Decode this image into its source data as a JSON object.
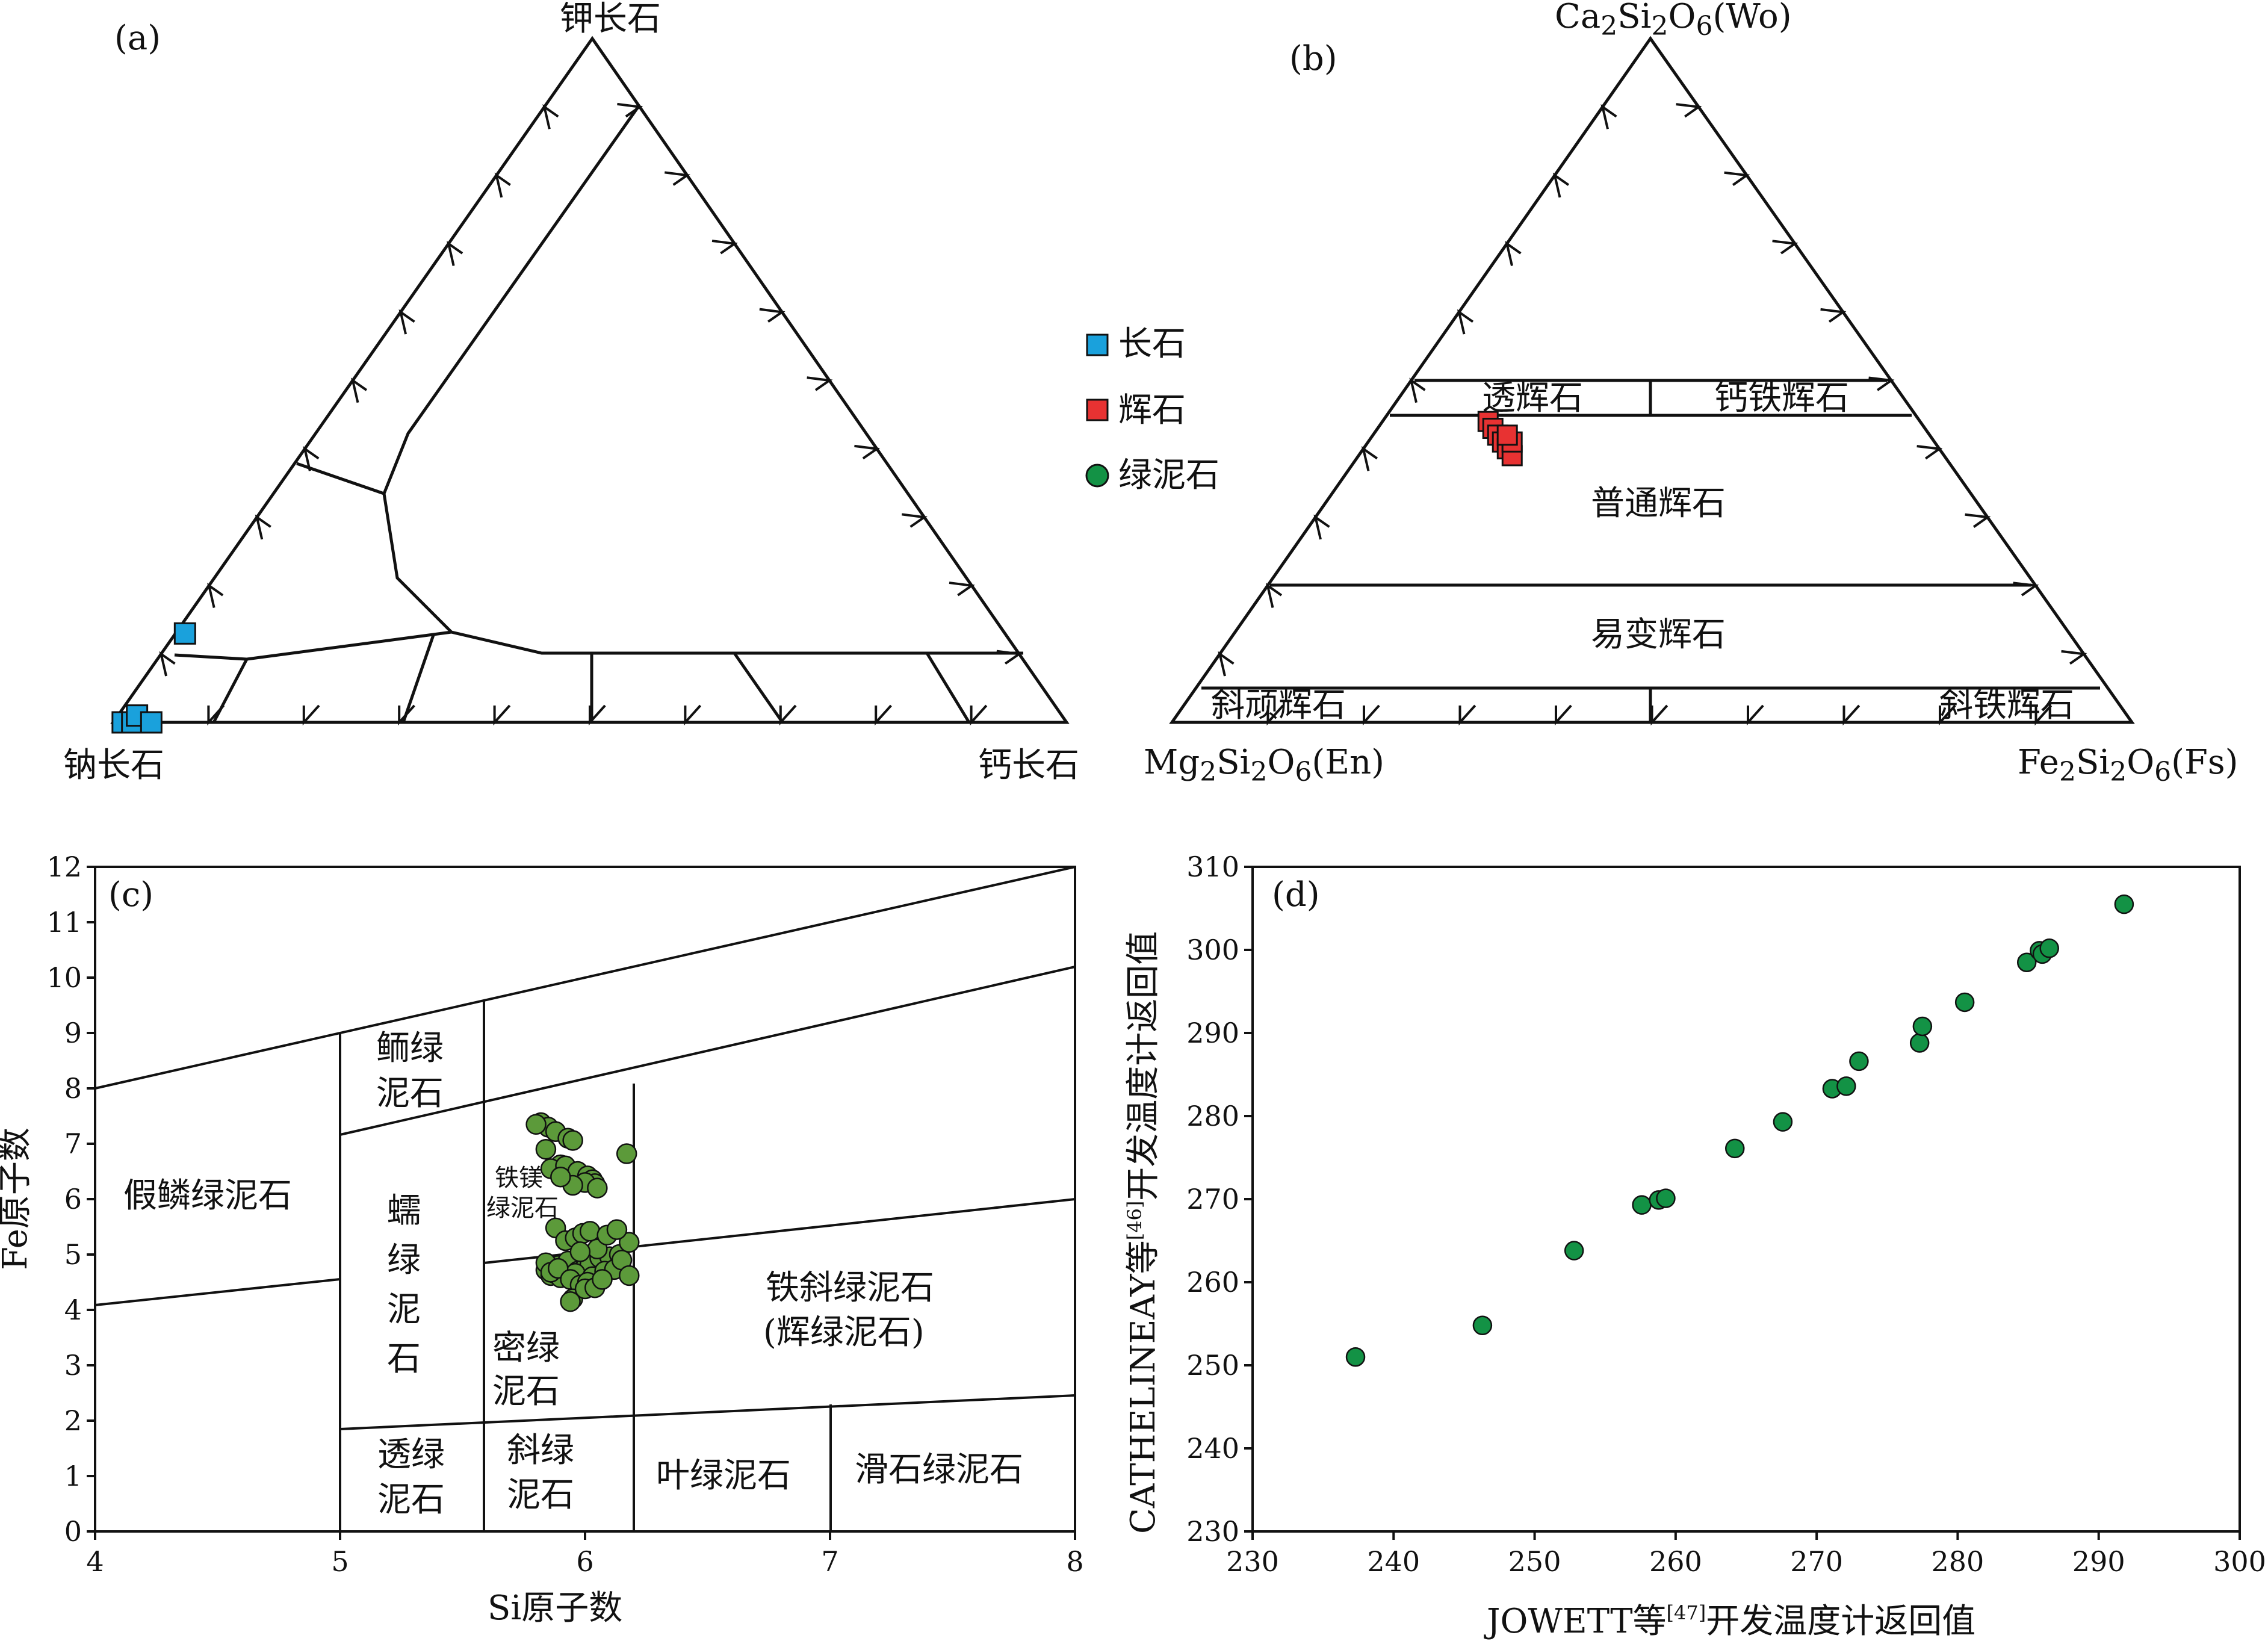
{
  "colors": {
    "feldspar": "#1aa1dc",
    "pyroxene": "#e83232",
    "chlorite_c": "#5c9a3a",
    "chlorite_legend": "#139245",
    "chlorite_d": "#139245",
    "line": "#111111"
  },
  "legend": [
    {
      "key": "feldspar",
      "shape": "square",
      "label": "长石"
    },
    {
      "key": "pyroxene",
      "shape": "square",
      "label": "辉石"
    },
    {
      "key": "chlorite",
      "shape": "circle",
      "label": "绿泥石"
    }
  ],
  "panels": {
    "a": {
      "letter": "(a)",
      "top": "钾长石",
      "left": "钠长石",
      "right": "钙长石"
    },
    "b": {
      "letter": "(b)",
      "top": {
        "main": "Ca",
        "s1": "2",
        "mid": "Si",
        "s2": "2",
        "mid2": "O",
        "s3": "6",
        "tail": "(Wo)"
      },
      "left": {
        "main": "Mg",
        "s1": "2",
        "mid": "Si",
        "s2": "2",
        "mid2": "O",
        "s3": "6",
        "tail": "(En)"
      },
      "right": {
        "main": "Fe",
        "s1": "2",
        "mid": "Si",
        "s2": "2",
        "mid2": "O",
        "s3": "6",
        "tail": "(Fs)"
      },
      "fields": [
        "透辉石",
        "钙铁辉石",
        "普通辉石",
        "易变辉石",
        "斜顽辉石",
        "斜铁辉石"
      ]
    },
    "c": {
      "letter": "(c)",
      "xlabel": "Si原子数",
      "ylabel": "Fe原子数",
      "fields": {
        "pseudothuringite": "假鳞绿泥石",
        "brunsvigite_1": "鲕绿",
        "brunsvigite_2": "泥石",
        "ripidolite": [
          "蠕",
          "绿",
          "泥",
          "石"
        ],
        "ferromg_1": "铁镁",
        "ferromg_2": "绿泥石",
        "pycnochlorite_1": "密绿",
        "pycnochlorite_2": "泥石",
        "ferriclino_1": "铁斜绿泥石",
        "ferriclino_2": "(辉绿泥石)",
        "penninite_1": "透绿",
        "penninite_2": "泥石",
        "clinochlore_1": "斜绿",
        "clinochlore_2": "泥石",
        "sheridanite": "叶绿泥石",
        "talc_chlorite": "滑石绿泥石"
      }
    },
    "d": {
      "letter": "(d)",
      "xlabel": {
        "pre": "JOWETT等",
        "ref": "[47]",
        "post": "开发温度计返回值"
      },
      "ylabel": {
        "pre": "CATHELINEAY等",
        "ref": "[46]",
        "post": "开发温度计返回值"
      }
    }
  },
  "chart_data": [
    {
      "panel": "a",
      "type": "ternary",
      "vertices": {
        "top": "钾长石",
        "left": "钠长石",
        "right": "钙长石"
      },
      "series": [
        {
          "name": "长石",
          "points": [
            [
              0.0,
              0.99,
              0.01
            ],
            [
              0.0,
              0.98,
              0.02
            ],
            [
              0.01,
              0.97,
              0.02
            ],
            [
              0.0,
              0.96,
              0.04
            ],
            [
              0.13,
              0.86,
              0.01
            ]
          ]
        }
      ]
    },
    {
      "panel": "b",
      "type": "ternary",
      "vertices": {
        "top": "Wo",
        "left": "En",
        "right": "Fs"
      },
      "series": [
        {
          "name": "辉石",
          "points": [
            [
              0.44,
              0.45,
              0.11
            ],
            [
              0.43,
              0.45,
              0.12
            ],
            [
              0.42,
              0.45,
              0.13
            ],
            [
              0.41,
              0.45,
              0.14
            ],
            [
              0.4,
              0.45,
              0.15
            ],
            [
              0.39,
              0.45,
              0.16
            ],
            [
              0.41,
              0.44,
              0.15
            ],
            [
              0.42,
              0.44,
              0.14
            ]
          ]
        }
      ]
    },
    {
      "panel": "c",
      "type": "scatter",
      "xlim": [
        4,
        8
      ],
      "ylim": [
        0,
        12
      ],
      "xticks": [
        4,
        5,
        6,
        7,
        8
      ],
      "yticks": [
        0,
        1,
        2,
        3,
        4,
        5,
        6,
        7,
        8,
        9,
        10,
        11,
        12
      ],
      "series": [
        {
          "name": "绿泥石",
          "x": [
            5.82,
            5.85,
            5.88,
            5.93,
            5.95,
            5.8,
            5.84,
            5.9,
            5.86,
            5.92,
            5.97,
            6.01,
            6.03,
            6.04,
            6.0,
            5.95,
            5.9,
            6.05,
            6.17,
            5.88,
            5.84,
            5.89,
            5.93,
            5.97,
            6.0,
            6.02,
            6.06,
            6.1,
            6.14,
            5.86,
            5.88,
            5.9,
            5.96,
            6.03,
            6.08,
            6.12,
            6.15,
            6.18,
            6.18,
            5.92,
            5.96,
            5.99,
            6.02,
            5.84,
            5.86,
            5.89,
            5.94,
            5.98,
            6.01,
            6.05,
            6.09,
            6.13,
            5.95,
            6.0,
            6.04,
            6.07,
            5.94,
            5.98
          ],
          "y": [
            7.38,
            7.3,
            7.22,
            7.1,
            7.06,
            7.35,
            6.9,
            6.62,
            6.55,
            6.6,
            6.5,
            6.42,
            6.35,
            6.28,
            6.3,
            6.25,
            6.4,
            6.2,
            6.82,
            5.48,
            4.72,
            4.8,
            4.88,
            4.7,
            4.76,
            4.82,
            4.94,
            4.96,
            5.0,
            4.62,
            4.65,
            4.58,
            4.66,
            4.6,
            4.7,
            4.73,
            4.9,
            5.22,
            4.62,
            5.25,
            5.3,
            5.38,
            5.42,
            4.85,
            4.68,
            4.75,
            4.55,
            4.45,
            4.5,
            5.1,
            5.35,
            5.45,
            4.2,
            4.38,
            4.4,
            4.55,
            4.15,
            5.05
          ]
        }
      ]
    },
    {
      "panel": "d",
      "type": "scatter",
      "xlim": [
        230,
        300
      ],
      "ylim": [
        230,
        310
      ],
      "xticks": [
        230,
        240,
        250,
        260,
        270,
        280,
        290,
        300
      ],
      "yticks": [
        230,
        240,
        250,
        260,
        270,
        280,
        290,
        300,
        310
      ],
      "series": [
        {
          "name": "",
          "x": [
            237.3,
            246.3,
            252.8,
            257.6,
            258.8,
            259.3,
            264.2,
            267.6,
            271.1,
            272.1,
            273.0,
            277.3,
            277.5,
            280.5,
            284.9,
            285.8,
            286.0,
            286.5,
            291.8
          ],
          "y": [
            251.0,
            254.8,
            263.8,
            269.3,
            269.9,
            270.1,
            276.1,
            279.3,
            283.3,
            283.6,
            286.6,
            288.8,
            290.8,
            293.7,
            298.5,
            299.9,
            299.5,
            300.2,
            305.5
          ]
        }
      ]
    }
  ]
}
